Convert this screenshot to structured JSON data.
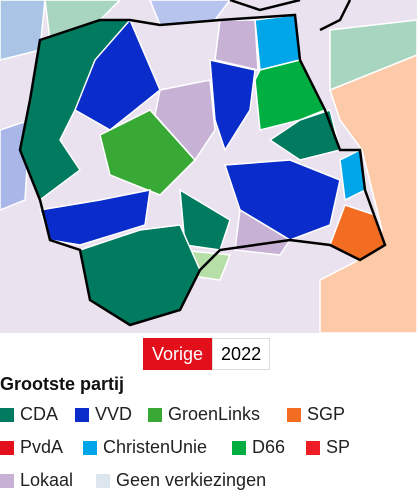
{
  "toggle": {
    "options": [
      "Vorige",
      "2022"
    ]
  },
  "legend": {
    "title": "Grootste partij",
    "items": [
      {
        "label": "CDA",
        "color": "#007b5f"
      },
      {
        "label": "VVD",
        "color": "#0a2cca"
      },
      {
        "label": "GroenLinks",
        "color": "#39a935"
      },
      {
        "label": "SGP",
        "color": "#f26d21"
      },
      {
        "label": "PvdA",
        "color": "#e3101c"
      },
      {
        "label": "ChristenUnie",
        "color": "#00a6e8"
      },
      {
        "label": "D66",
        "color": "#00ae41"
      },
      {
        "label": "SP",
        "color": "#ee1c25"
      },
      {
        "label": "Lokaal",
        "color": "#c7b2d6"
      },
      {
        "label": "Geen verkiezingen",
        "color": "#dde6ee"
      }
    ]
  }
}
